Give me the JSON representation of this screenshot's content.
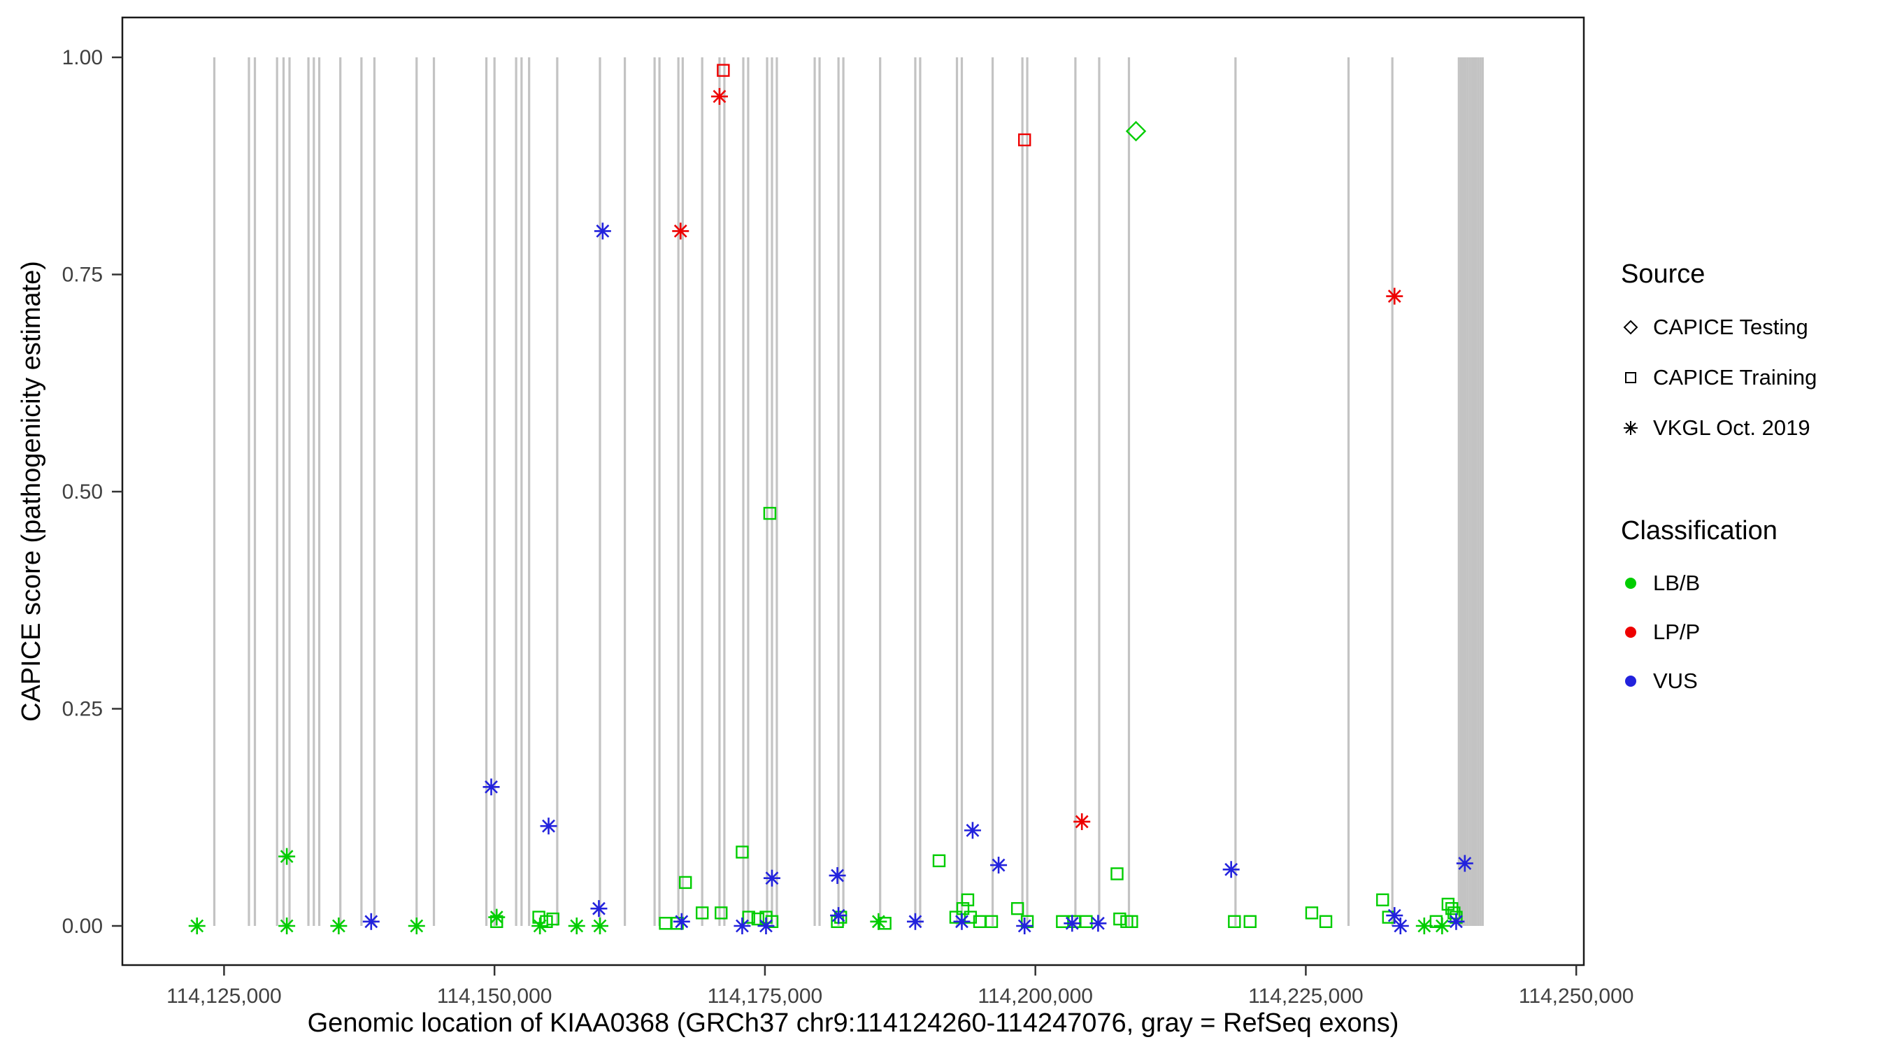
{
  "chart_data": {
    "type": "scatter",
    "title": "",
    "xlabel": "Genomic location of KIAA0368 (GRCh37 chr9:114124260-114247076, gray = RefSeq exons)",
    "ylabel": "CAPICE score (pathogenicity estimate)",
    "x_domain": [
      114115600,
      114250700
    ],
    "ylim": [
      0,
      1
    ],
    "grid": "off",
    "legend_position": "right",
    "exon_color": "#c3c3c3",
    "x_ticks": [
      {
        "value": 114125000,
        "label": "114,125,000"
      },
      {
        "value": 114150000,
        "label": "114,150,000"
      },
      {
        "value": 114175000,
        "label": "114,175,000"
      },
      {
        "value": 114200000,
        "label": "114,200,000"
      },
      {
        "value": 114225000,
        "label": "114,225,000"
      },
      {
        "value": 114250000,
        "label": "114,250,000"
      }
    ],
    "y_ticks": [
      {
        "value": 0.0,
        "label": "0.00"
      },
      {
        "value": 0.25,
        "label": "0.25"
      },
      {
        "value": 0.5,
        "label": "0.50"
      },
      {
        "value": 0.75,
        "label": "0.75"
      },
      {
        "value": 1.0,
        "label": "1.00"
      }
    ],
    "classification_colors": {
      "LB/B": "#00CD00",
      "LP/P": "#EE0000",
      "VUS": "#2222DD"
    },
    "source_shapes": {
      "testing": "diamond",
      "training": "square",
      "vkgl": "asterisk"
    },
    "exons": [
      114124100,
      114127300,
      114127850,
      114129900,
      114130500,
      114131050,
      114132800,
      114133300,
      114133800,
      114135750,
      114137700,
      114138900,
      114142800,
      114144400,
      114149250,
      114150000,
      114152000,
      114152500,
      114153200,
      114155800,
      114159750,
      114162050,
      114164800,
      114165250,
      114167000,
      114167400,
      114169200,
      114170800,
      114171250,
      114173000,
      114173450,
      114175200,
      114175650,
      114176100,
      114179600,
      114180050,
      114181800,
      114182250,
      114185650,
      114188900,
      114189350,
      114192750,
      114193200,
      114196050,
      114198800,
      114199250,
      114203700,
      114205900,
      114208650,
      114218500,
      114228950,
      114233000,
      114239150,
      114239350,
      114239550,
      114239750,
      114239950,
      114240150,
      114240350,
      114240550,
      114240750,
      114240950,
      114241150,
      114241350
    ],
    "points": [
      {
        "x": 114171150,
        "y": 0.985,
        "cls": "LP/P",
        "src": "training"
      },
      {
        "x": 114170800,
        "y": 0.955,
        "cls": "LP/P",
        "src": "vkgl"
      },
      {
        "x": 114199000,
        "y": 0.905,
        "cls": "LP/P",
        "src": "training"
      },
      {
        "x": 114209300,
        "y": 0.915,
        "cls": "LB/B",
        "src": "testing"
      },
      {
        "x": 114167200,
        "y": 0.8,
        "cls": "LP/P",
        "src": "vkgl"
      },
      {
        "x": 114160000,
        "y": 0.8,
        "cls": "VUS",
        "src": "vkgl"
      },
      {
        "x": 114233200,
        "y": 0.725,
        "cls": "LP/P",
        "src": "vkgl"
      },
      {
        "x": 114175450,
        "y": 0.475,
        "cls": "LB/B",
        "src": "training"
      },
      {
        "x": 114149700,
        "y": 0.16,
        "cls": "VUS",
        "src": "vkgl"
      },
      {
        "x": 114204300,
        "y": 0.12,
        "cls": "LP/P",
        "src": "vkgl"
      },
      {
        "x": 114155000,
        "y": 0.115,
        "cls": "VUS",
        "src": "vkgl"
      },
      {
        "x": 114194200,
        "y": 0.11,
        "cls": "VUS",
        "src": "vkgl"
      },
      {
        "x": 114172900,
        "y": 0.085,
        "cls": "LB/B",
        "src": "training"
      },
      {
        "x": 114130800,
        "y": 0.08,
        "cls": "LB/B",
        "src": "vkgl"
      },
      {
        "x": 114191100,
        "y": 0.075,
        "cls": "LB/B",
        "src": "training"
      },
      {
        "x": 114239700,
        "y": 0.072,
        "cls": "VUS",
        "src": "vkgl"
      },
      {
        "x": 114196600,
        "y": 0.07,
        "cls": "VUS",
        "src": "vkgl"
      },
      {
        "x": 114218100,
        "y": 0.065,
        "cls": "VUS",
        "src": "vkgl"
      },
      {
        "x": 114207550,
        "y": 0.06,
        "cls": "LB/B",
        "src": "training"
      },
      {
        "x": 114181700,
        "y": 0.058,
        "cls": "VUS",
        "src": "vkgl"
      },
      {
        "x": 114175650,
        "y": 0.055,
        "cls": "VUS",
        "src": "vkgl"
      },
      {
        "x": 114167650,
        "y": 0.05,
        "cls": "LB/B",
        "src": "training"
      },
      {
        "x": 114150200,
        "y": 0.005,
        "cls": "LB/B",
        "src": "training"
      },
      {
        "x": 114154100,
        "y": 0.01,
        "cls": "LB/B",
        "src": "training"
      },
      {
        "x": 114154800,
        "y": 0.005,
        "cls": "LB/B",
        "src": "training"
      },
      {
        "x": 114155400,
        "y": 0.008,
        "cls": "LB/B",
        "src": "training"
      },
      {
        "x": 114165800,
        "y": 0.003,
        "cls": "LB/B",
        "src": "training"
      },
      {
        "x": 114166900,
        "y": 0.003,
        "cls": "LB/B",
        "src": "training"
      },
      {
        "x": 114169200,
        "y": 0.015,
        "cls": "LB/B",
        "src": "training"
      },
      {
        "x": 114170950,
        "y": 0.015,
        "cls": "LB/B",
        "src": "training"
      },
      {
        "x": 114173500,
        "y": 0.01,
        "cls": "LB/B",
        "src": "training"
      },
      {
        "x": 114174350,
        "y": 0.008,
        "cls": "LB/B",
        "src": "training"
      },
      {
        "x": 114175100,
        "y": 0.01,
        "cls": "LB/B",
        "src": "training"
      },
      {
        "x": 114175650,
        "y": 0.005,
        "cls": "LB/B",
        "src": "training"
      },
      {
        "x": 114181700,
        "y": 0.005,
        "cls": "LB/B",
        "src": "training"
      },
      {
        "x": 114182000,
        "y": 0.01,
        "cls": "LB/B",
        "src": "training"
      },
      {
        "x": 114186100,
        "y": 0.003,
        "cls": "LB/B",
        "src": "training"
      },
      {
        "x": 114192650,
        "y": 0.01,
        "cls": "LB/B",
        "src": "training"
      },
      {
        "x": 114193300,
        "y": 0.02,
        "cls": "LB/B",
        "src": "training"
      },
      {
        "x": 114193750,
        "y": 0.03,
        "cls": "LB/B",
        "src": "training"
      },
      {
        "x": 114194000,
        "y": 0.01,
        "cls": "LB/B",
        "src": "training"
      },
      {
        "x": 114194850,
        "y": 0.005,
        "cls": "LB/B",
        "src": "training"
      },
      {
        "x": 114195950,
        "y": 0.005,
        "cls": "LB/B",
        "src": "training"
      },
      {
        "x": 114198350,
        "y": 0.02,
        "cls": "LB/B",
        "src": "training"
      },
      {
        "x": 114199250,
        "y": 0.005,
        "cls": "LB/B",
        "src": "training"
      },
      {
        "x": 114202500,
        "y": 0.005,
        "cls": "LB/B",
        "src": "training"
      },
      {
        "x": 114203600,
        "y": 0.005,
        "cls": "LB/B",
        "src": "training"
      },
      {
        "x": 114204700,
        "y": 0.005,
        "cls": "LB/B",
        "src": "training"
      },
      {
        "x": 114207800,
        "y": 0.008,
        "cls": "LB/B",
        "src": "training"
      },
      {
        "x": 114208450,
        "y": 0.005,
        "cls": "LB/B",
        "src": "training"
      },
      {
        "x": 114208900,
        "y": 0.005,
        "cls": "LB/B",
        "src": "training"
      },
      {
        "x": 114218400,
        "y": 0.005,
        "cls": "LB/B",
        "src": "training"
      },
      {
        "x": 114219850,
        "y": 0.005,
        "cls": "LB/B",
        "src": "training"
      },
      {
        "x": 114225550,
        "y": 0.015,
        "cls": "LB/B",
        "src": "training"
      },
      {
        "x": 114226850,
        "y": 0.005,
        "cls": "LB/B",
        "src": "training"
      },
      {
        "x": 114232100,
        "y": 0.03,
        "cls": "LB/B",
        "src": "training"
      },
      {
        "x": 114232650,
        "y": 0.01,
        "cls": "LB/B",
        "src": "training"
      },
      {
        "x": 114237050,
        "y": 0.005,
        "cls": "LB/B",
        "src": "training"
      },
      {
        "x": 114238150,
        "y": 0.025,
        "cls": "LB/B",
        "src": "training"
      },
      {
        "x": 114238500,
        "y": 0.02,
        "cls": "LB/B",
        "src": "training"
      },
      {
        "x": 114238700,
        "y": 0.015,
        "cls": "LB/B",
        "src": "training"
      },
      {
        "x": 114238900,
        "y": 0.01,
        "cls": "LB/B",
        "src": "training"
      },
      {
        "x": 114122500,
        "y": 0.0,
        "cls": "LB/B",
        "src": "vkgl"
      },
      {
        "x": 114130800,
        "y": 0.0,
        "cls": "LB/B",
        "src": "vkgl"
      },
      {
        "x": 114135600,
        "y": 0.0,
        "cls": "LB/B",
        "src": "vkgl"
      },
      {
        "x": 114142800,
        "y": 0.0,
        "cls": "LB/B",
        "src": "vkgl"
      },
      {
        "x": 114150200,
        "y": 0.01,
        "cls": "LB/B",
        "src": "vkgl"
      },
      {
        "x": 114154200,
        "y": 0.0,
        "cls": "LB/B",
        "src": "vkgl"
      },
      {
        "x": 114157600,
        "y": 0.0,
        "cls": "LB/B",
        "src": "vkgl"
      },
      {
        "x": 114159750,
        "y": 0.0,
        "cls": "LB/B",
        "src": "vkgl"
      },
      {
        "x": 114185500,
        "y": 0.005,
        "cls": "LB/B",
        "src": "vkgl"
      },
      {
        "x": 114235950,
        "y": 0.0,
        "cls": "LB/B",
        "src": "vkgl"
      },
      {
        "x": 114237600,
        "y": 0.0,
        "cls": "LB/B",
        "src": "vkgl"
      },
      {
        "x": 114138600,
        "y": 0.005,
        "cls": "VUS",
        "src": "vkgl"
      },
      {
        "x": 114159650,
        "y": 0.02,
        "cls": "VUS",
        "src": "vkgl"
      },
      {
        "x": 114167300,
        "y": 0.005,
        "cls": "VUS",
        "src": "vkgl"
      },
      {
        "x": 114172900,
        "y": 0.0,
        "cls": "VUS",
        "src": "vkgl"
      },
      {
        "x": 114175100,
        "y": 0.0,
        "cls": "VUS",
        "src": "vkgl"
      },
      {
        "x": 114181800,
        "y": 0.012,
        "cls": "VUS",
        "src": "vkgl"
      },
      {
        "x": 114188900,
        "y": 0.005,
        "cls": "VUS",
        "src": "vkgl"
      },
      {
        "x": 114193200,
        "y": 0.005,
        "cls": "VUS",
        "src": "vkgl"
      },
      {
        "x": 114199000,
        "y": 0.0,
        "cls": "VUS",
        "src": "vkgl"
      },
      {
        "x": 114203400,
        "y": 0.003,
        "cls": "VUS",
        "src": "vkgl"
      },
      {
        "x": 114205800,
        "y": 0.003,
        "cls": "VUS",
        "src": "vkgl"
      },
      {
        "x": 114233200,
        "y": 0.012,
        "cls": "VUS",
        "src": "vkgl"
      },
      {
        "x": 114233750,
        "y": 0.0,
        "cls": "VUS",
        "src": "vkgl"
      },
      {
        "x": 114238900,
        "y": 0.005,
        "cls": "VUS",
        "src": "vkgl"
      }
    ]
  },
  "legend": {
    "source": {
      "title": "Source",
      "items": [
        {
          "label": "CAPICE Testing",
          "shape": "diamond"
        },
        {
          "label": "CAPICE Training",
          "shape": "square"
        },
        {
          "label": "VKGL Oct. 2019",
          "shape": "asterisk"
        }
      ]
    },
    "classification": {
      "title": "Classification",
      "items": [
        {
          "label": "LB/B",
          "color": "#00CD00"
        },
        {
          "label": "LP/P",
          "color": "#EE0000"
        },
        {
          "label": "VUS",
          "color": "#2222DD"
        }
      ]
    }
  }
}
